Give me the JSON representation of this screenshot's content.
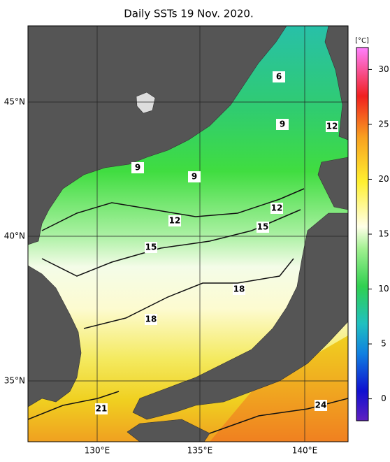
{
  "map": {
    "title": "Daily SSTs 19 Nov. 2020.",
    "lon_labels": [
      "130°E",
      "135°E",
      "140°E"
    ],
    "lat_labels": [
      "45°N",
      "40°N",
      "35°N"
    ],
    "colorbar": {
      "unit": "[°C]",
      "lim": [
        -2,
        32
      ],
      "ticks": [
        0,
        5,
        10,
        15,
        20,
        25,
        30
      ]
    },
    "contours": [
      {
        "label": 6
      },
      {
        "label": 9
      },
      {
        "label": 12
      },
      {
        "label": 9
      },
      {
        "label": 9
      },
      {
        "label": 12
      },
      {
        "label": 12
      },
      {
        "label": 15
      },
      {
        "label": 15
      },
      {
        "label": 18
      },
      {
        "label": 18
      },
      {
        "label": 21
      },
      {
        "label": 24
      }
    ]
  }
}
